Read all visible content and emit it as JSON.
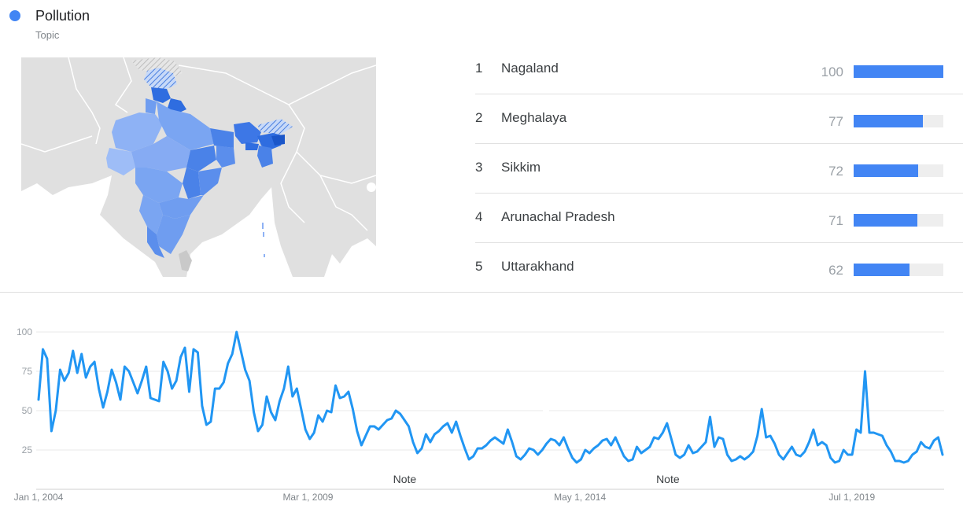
{
  "header": {
    "topic": "Pollution",
    "type": "Topic",
    "accent_color": "#4285f4"
  },
  "map": {
    "region": "India",
    "highlight_color": "#4285f4"
  },
  "ranking": [
    {
      "rank": "1",
      "name": "Nagaland",
      "value": 100
    },
    {
      "rank": "2",
      "name": "Meghalaya",
      "value": 77
    },
    {
      "rank": "3",
      "name": "Sikkim",
      "value": 72
    },
    {
      "rank": "4",
      "name": "Arunachal Pradesh",
      "value": 71
    },
    {
      "rank": "5",
      "name": "Uttarakhand",
      "value": 62
    }
  ],
  "chart_data": {
    "type": "line",
    "title": "",
    "xlabel": "",
    "ylabel": "",
    "ylim": [
      0,
      100
    ],
    "yticks": [
      25,
      50,
      75,
      100
    ],
    "grid": true,
    "color": "#2196f3",
    "x_start": "Jan 1, 2004",
    "x_end": "Apr 1, 2021",
    "x_ticks": [
      {
        "label": "Jan 1, 2004",
        "date": "2004-01-01"
      },
      {
        "label": "Mar 1, 2009",
        "date": "2009-03-01"
      },
      {
        "label": "May 1, 2014",
        "date": "2014-05-01"
      },
      {
        "label": "Jul 1, 2019",
        "date": "2019-07-01"
      }
    ],
    "annotations": [
      {
        "label": "Note",
        "date": "2011-01-01"
      },
      {
        "label": "Note",
        "date": "2016-01-01"
      }
    ],
    "values": [
      57,
      89,
      83,
      37,
      50,
      76,
      69,
      74,
      88,
      74,
      86,
      71,
      78,
      81,
      64,
      52,
      62,
      76,
      68,
      57,
      78,
      75,
      68,
      61,
      69,
      78,
      58,
      57,
      56,
      81,
      75,
      64,
      69,
      84,
      90,
      62,
      89,
      87,
      53,
      41,
      43,
      64,
      64,
      68,
      80,
      86,
      100,
      88,
      76,
      69,
      49,
      37,
      41,
      59,
      49,
      44,
      56,
      64,
      78,
      59,
      64,
      51,
      38,
      32,
      36,
      47,
      43,
      50,
      49,
      66,
      58,
      59,
      62,
      51,
      37,
      28,
      34,
      40,
      40,
      38,
      41,
      44,
      45,
      50,
      48,
      44,
      40,
      30,
      23,
      26,
      35,
      30,
      35,
      37,
      40,
      42,
      36,
      43,
      34,
      26,
      19,
      21,
      26,
      26,
      28,
      31,
      33,
      31,
      29,
      38,
      30,
      21,
      19,
      22,
      26,
      25,
      22,
      25,
      29,
      32,
      31,
      28,
      33,
      26,
      20,
      17,
      19,
      25,
      23,
      26,
      28,
      31,
      32,
      28,
      33,
      27,
      21,
      18,
      19,
      27,
      23,
      25,
      27,
      33,
      32,
      36,
      42,
      32,
      22,
      20,
      22,
      28,
      23,
      24,
      27,
      30,
      46,
      27,
      33,
      32,
      22,
      18,
      19,
      21,
      19,
      21,
      24,
      34,
      51,
      33,
      34,
      29,
      22,
      19,
      23,
      27,
      22,
      21,
      24,
      30,
      38,
      28,
      30,
      28,
      20,
      17,
      18,
      25,
      22,
      22,
      38,
      36,
      75,
      36,
      36,
      35,
      34,
      28,
      24,
      18,
      18,
      17,
      18,
      22,
      24,
      30,
      27,
      26,
      31,
      33,
      22
    ]
  }
}
